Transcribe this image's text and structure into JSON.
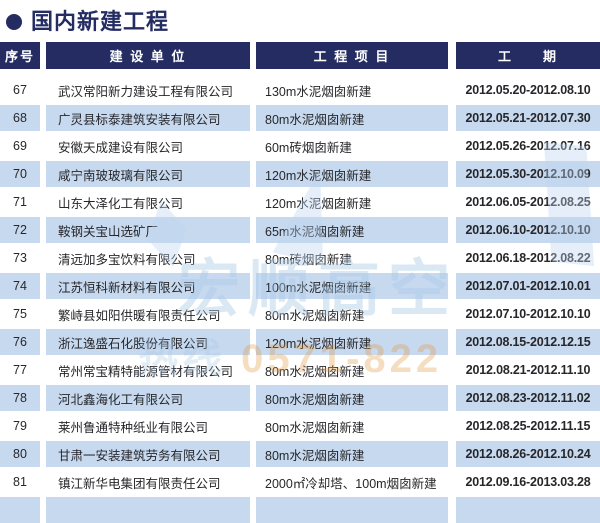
{
  "page": {
    "title": "国内新建工程"
  },
  "colors": {
    "navy_header": "#242c62",
    "row_alt_blue": "#c7d9ef",
    "row_white": "#ffffff",
    "body_text": "#27272b",
    "watermark_blue": "#a9c9e6",
    "watermark_orange": "#e2973e"
  },
  "table": {
    "headers": {
      "no": "序号",
      "company": "建 设 单 位",
      "project": "工 程 项 目",
      "period": "工　　期"
    },
    "rows": [
      {
        "no": "67",
        "company": "武汉常阳新力建设工程有限公司",
        "project": "130m水泥烟囱新建",
        "period": "2012.05.20-2012.08.10"
      },
      {
        "no": "68",
        "company": "广灵县标泰建筑安装有限公司",
        "project": "80m水泥烟囱新建",
        "period": "2012.05.21-2012.07.30"
      },
      {
        "no": "69",
        "company": "安徽天成建设有限公司",
        "project": "60m砖烟囱新建",
        "period": "2012.05.26-2012.07.16"
      },
      {
        "no": "70",
        "company": "咸宁南玻玻璃有限公司",
        "project": "120m水泥烟囱新建",
        "period": "2012.05.30-2012.10.09"
      },
      {
        "no": "71",
        "company": "山东大泽化工有限公司",
        "project": "120m水泥烟囱新建",
        "period": "2012.06.05-2012.08.25"
      },
      {
        "no": "72",
        "company": "鞍钢关宝山选矿厂",
        "project": "65m水泥烟囱新建",
        "period": "2012.06.10-2012.10.10"
      },
      {
        "no": "73",
        "company": "清远加多宝饮料有限公司",
        "project": "80m砖烟囱新建",
        "period": "2012.06.18-2012.08.22"
      },
      {
        "no": "74",
        "company": "江苏恒科新材料有限公司",
        "project": "100m水泥烟囱新建",
        "period": "2012.07.01-2012.10.01"
      },
      {
        "no": "75",
        "company": "繁峙县如阳供暖有限责任公司",
        "project": "80m水泥烟囱新建",
        "period": "2012.07.10-2012.10.10"
      },
      {
        "no": "76",
        "company": "浙江逸盛石化股份有限公司",
        "project": "120m水泥烟囱新建",
        "period": "2012.08.15-2012.12.15"
      },
      {
        "no": "77",
        "company": "常州常宝精特能源管材有限公司",
        "project": "80m水泥烟囱新建",
        "period": "2012.08.21-2012.11.10"
      },
      {
        "no": "78",
        "company": "河北鑫海化工有限公司",
        "project": "80m水泥烟囱新建",
        "period": "2012.08.23-2012.11.02"
      },
      {
        "no": "79",
        "company": "莱州鲁通特种纸业有限公司",
        "project": "80m水泥烟囱新建",
        "period": "2012.08.25-2012.11.15"
      },
      {
        "no": "80",
        "company": "甘肃一安装建筑劳务有限公司",
        "project": "80m水泥烟囱新建",
        "period": "2012.08.26-2012.10.24"
      },
      {
        "no": "81",
        "company": "镇江新华电集团有限责任公司",
        "project": "2000㎡冷却塔、100m烟囱新建",
        "period": "2012.09.16-2013.03.28"
      }
    ]
  },
  "watermark": {
    "brand": "宏顺高空",
    "hotline_label": "热线 ",
    "hotline_number": "0571-822"
  }
}
